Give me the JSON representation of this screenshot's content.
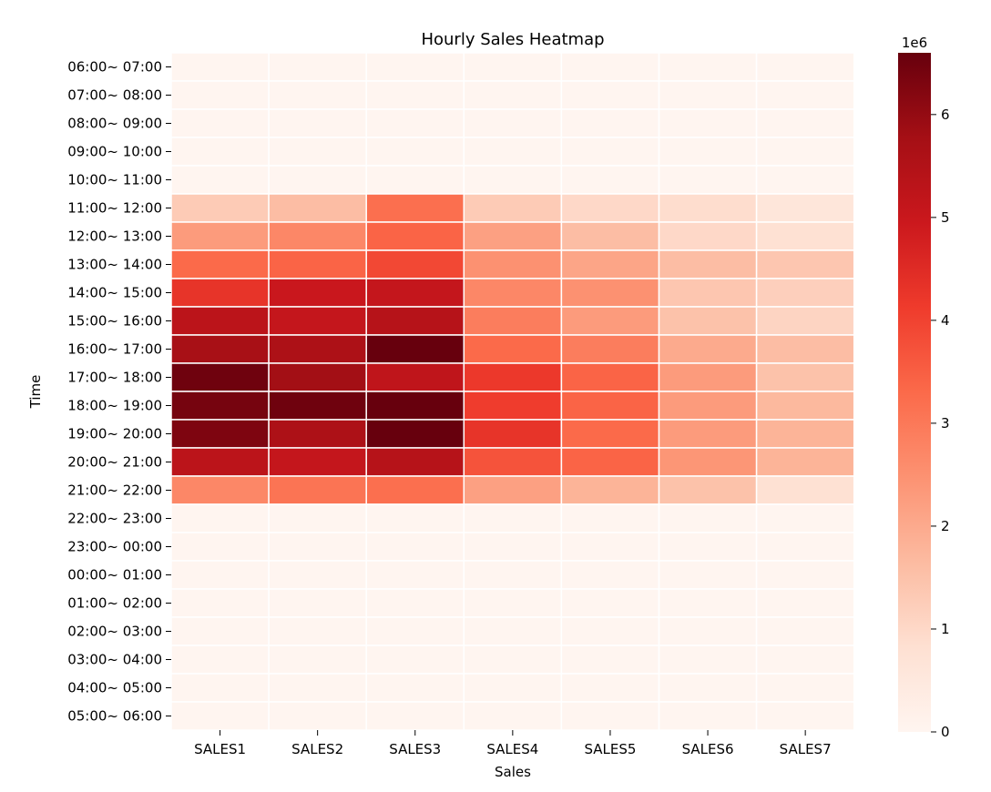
{
  "chart_data": {
    "type": "heatmap",
    "title": "Hourly Sales Heatmap",
    "xlabel": "Sales",
    "ylabel": "Time",
    "columns": [
      "SALES1",
      "SALES2",
      "SALES3",
      "SALES4",
      "SALES5",
      "SALES6",
      "SALES7"
    ],
    "rows": [
      "06:00~ 07:00",
      "07:00~ 08:00",
      "08:00~ 09:00",
      "09:00~ 10:00",
      "10:00~ 11:00",
      "11:00~ 12:00",
      "12:00~ 13:00",
      "13:00~ 14:00",
      "14:00~ 15:00",
      "15:00~ 16:00",
      "16:00~ 17:00",
      "17:00~ 18:00",
      "18:00~ 19:00",
      "19:00~ 20:00",
      "20:00~ 21:00",
      "21:00~ 22:00",
      "22:00~ 23:00",
      "23:00~ 00:00",
      "00:00~ 01:00",
      "01:00~ 02:00",
      "02:00~ 03:00",
      "03:00~ 04:00",
      "04:00~ 05:00",
      "05:00~ 06:00"
    ],
    "values": [
      [
        0,
        0,
        0,
        0,
        0,
        0,
        0
      ],
      [
        0,
        0,
        0,
        0,
        0,
        0,
        0
      ],
      [
        0,
        0,
        0,
        0,
        0,
        0,
        0
      ],
      [
        0,
        0,
        0,
        0,
        0,
        0,
        0
      ],
      [
        0,
        0,
        0,
        0,
        0,
        0,
        0
      ],
      [
        1300000,
        1600000,
        3200000,
        1300000,
        1000000,
        900000,
        600000
      ],
      [
        2300000,
        2700000,
        3400000,
        2200000,
        1600000,
        1000000,
        800000
      ],
      [
        3300000,
        3400000,
        3900000,
        2500000,
        2100000,
        1600000,
        1400000
      ],
      [
        4300000,
        5000000,
        5100000,
        2700000,
        2500000,
        1400000,
        1200000
      ],
      [
        5300000,
        5100000,
        5400000,
        2900000,
        2300000,
        1500000,
        1100000
      ],
      [
        5700000,
        5600000,
        6600000,
        3300000,
        2900000,
        2000000,
        1600000
      ],
      [
        6500000,
        5800000,
        5200000,
        4200000,
        3400000,
        2300000,
        1500000
      ],
      [
        6400000,
        6500000,
        6600000,
        4100000,
        3400000,
        2300000,
        1700000
      ],
      [
        6300000,
        5600000,
        6600000,
        4300000,
        3300000,
        2300000,
        1800000
      ],
      [
        5300000,
        5100000,
        5400000,
        3700000,
        3400000,
        2400000,
        1800000
      ],
      [
        2700000,
        3100000,
        3200000,
        2200000,
        1800000,
        1500000,
        800000
      ],
      [
        0,
        0,
        0,
        0,
        0,
        0,
        0
      ],
      [
        0,
        0,
        0,
        0,
        0,
        0,
        0
      ],
      [
        0,
        0,
        0,
        0,
        0,
        0,
        0
      ],
      [
        0,
        0,
        0,
        0,
        0,
        0,
        0
      ],
      [
        0,
        0,
        0,
        0,
        0,
        0,
        0
      ],
      [
        0,
        0,
        0,
        0,
        0,
        0,
        0
      ],
      [
        0,
        0,
        0,
        0,
        0,
        0,
        0
      ],
      [
        0,
        0,
        0,
        0,
        0,
        0,
        0
      ]
    ],
    "colormap": "Reds",
    "vmin": 0,
    "vmax": 6600000,
    "colorbar": {
      "ticks": [
        0,
        1,
        2,
        3,
        4,
        5,
        6
      ],
      "tick_labels": [
        "0",
        "1",
        "2",
        "3",
        "4",
        "5",
        "6"
      ],
      "scale_label": "1e6",
      "placement": "right"
    },
    "grid": false,
    "cell_border_color": "#ffffff"
  }
}
